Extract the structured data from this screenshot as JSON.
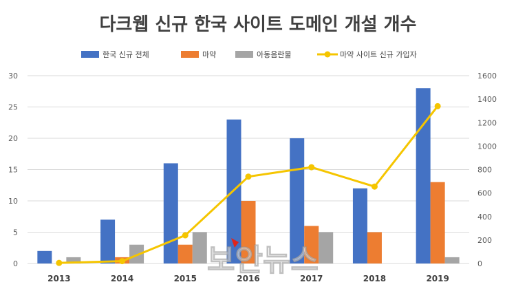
{
  "chart_data": {
    "type": "bar",
    "title": "다크웹 신규 한국 사이트 도메인 개설 개수",
    "categories": [
      "2013",
      "2014",
      "2015",
      "2016",
      "2017",
      "2018",
      "2019"
    ],
    "series": [
      {
        "name": "한국 신규 전체",
        "kind": "bar",
        "axis": "left",
        "color": "#4472C4",
        "values": [
          2,
          7,
          16,
          23,
          20,
          12,
          28
        ]
      },
      {
        "name": "마약",
        "kind": "bar",
        "axis": "left",
        "color": "#ED7D31",
        "values": [
          0,
          1,
          3,
          10,
          6,
          5,
          13
        ]
      },
      {
        "name": "아동음란물",
        "kind": "bar",
        "axis": "left",
        "color": "#A5A5A5",
        "values": [
          1,
          3,
          5,
          0,
          5,
          0,
          1
        ]
      },
      {
        "name": "마약 사이트 신규 가입자",
        "kind": "line",
        "axis": "right",
        "color": "#F5C500",
        "values": [
          5,
          20,
          240,
          740,
          820,
          655,
          1340
        ]
      }
    ],
    "left_axis": {
      "min": 0,
      "max": 30,
      "ticks": [
        "0",
        "5",
        "10",
        "15",
        "20",
        "25",
        "30"
      ]
    },
    "right_axis": {
      "min": 0,
      "max": 1600,
      "ticks": [
        "0",
        "200",
        "400",
        "600",
        "800",
        "1000",
        "1200",
        "1400",
        "1600"
      ]
    },
    "legend_position": "top",
    "grid": true
  },
  "watermark": "보안뉴스"
}
